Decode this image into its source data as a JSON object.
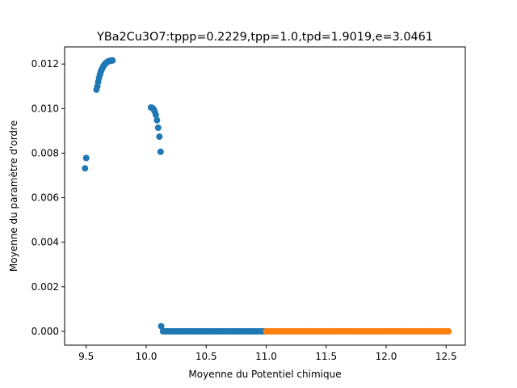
{
  "chart_data": {
    "type": "scatter",
    "title": "YBa2Cu3O7:tppp=0.2229,tpp=1.0,tpd=1.9019,e=3.0461",
    "xlabel": "Moyenne du Potentiel chimique",
    "ylabel": "Moyenne du paramètre d'ordre",
    "xlim": [
      9.32,
      12.66
    ],
    "ylim": [
      -0.00062,
      0.01277
    ],
    "x_ticks": [
      9.5,
      10.0,
      10.5,
      11.0,
      11.5,
      12.0,
      12.5
    ],
    "x_tick_labels": [
      "9.5",
      "10.0",
      "10.5",
      "11.0",
      "11.5",
      "12.0",
      "12.5"
    ],
    "y_ticks": [
      0.0,
      0.002,
      0.004,
      0.006,
      0.008,
      0.01,
      0.012
    ],
    "y_tick_labels": [
      "0.000",
      "0.002",
      "0.004",
      "0.006",
      "0.008",
      "0.010",
      "0.012"
    ],
    "grid": false,
    "legend": false,
    "series": [
      {
        "color": "#1f77b4",
        "segments": [
          {
            "x": [
              9.49,
              9.5
            ],
            "y": [
              0.00732,
              0.00778
            ]
          },
          {
            "x": [
              9.585,
              9.593,
              9.6,
              9.607,
              9.614,
              9.621,
              9.628,
              9.635,
              9.642,
              9.649,
              9.656,
              9.663,
              9.67,
              9.677,
              9.684,
              9.691,
              9.698,
              9.705,
              9.712,
              9.719
            ],
            "y": [
              0.01085,
              0.011,
              0.0112,
              0.01138,
              0.01152,
              0.01164,
              0.01174,
              0.01182,
              0.01189,
              0.01195,
              0.012,
              0.01204,
              0.01207,
              0.0121,
              0.01212,
              0.01213,
              0.01214,
              0.01215,
              0.01216,
              0.01216
            ]
          },
          {
            "x": [
              10.04,
              10.05,
              10.06,
              10.07,
              10.08,
              10.09,
              10.1,
              10.11,
              10.12
            ],
            "y": [
              0.01005,
              0.01003,
              0.00998,
              0.00988,
              0.00972,
              0.00948,
              0.00914,
              0.00874,
              0.00806
            ]
          },
          {
            "x": [
              10.125
            ],
            "y": [
              0.00023
            ]
          },
          {
            "range": [
              10.14,
              11.0,
              0.02
            ],
            "y_const": 0.0
          }
        ]
      },
      {
        "color": "#ff7f0e",
        "segments": [
          {
            "range": [
              11.0,
              12.52,
              0.02
            ],
            "y_const": 0.0
          }
        ]
      }
    ]
  }
}
